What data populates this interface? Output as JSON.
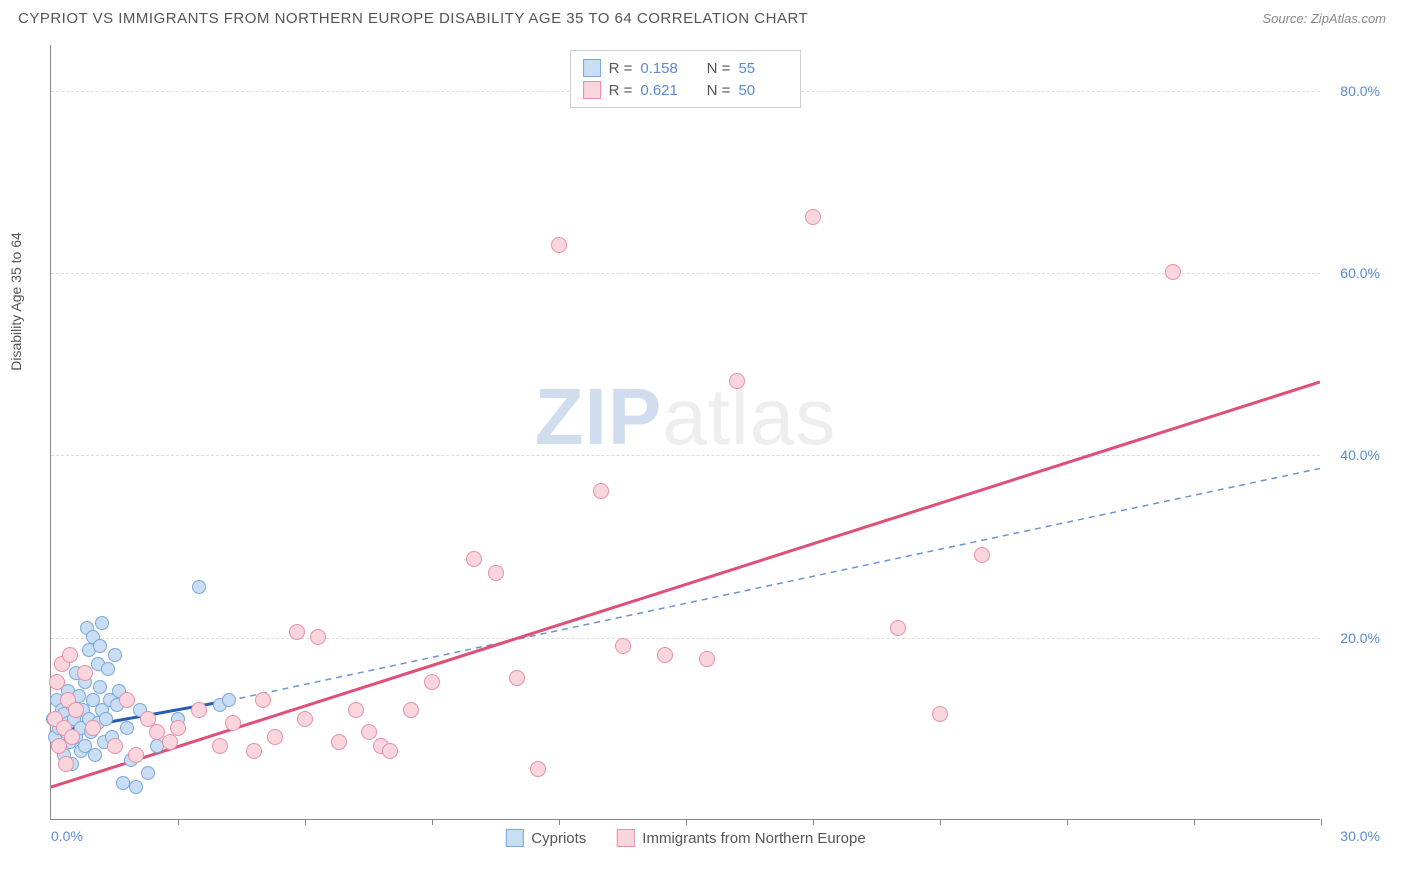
{
  "header": {
    "title": "CYPRIOT VS IMMIGRANTS FROM NORTHERN EUROPE DISABILITY AGE 35 TO 64 CORRELATION CHART",
    "source": "Source: ZipAtlas.com"
  },
  "watermark": {
    "zip": "ZIP",
    "atlas": "atlas"
  },
  "chart": {
    "type": "scatter",
    "ylabel": "Disability Age 35 to 64",
    "background_color": "#ffffff",
    "grid_color": "#dddddd",
    "axis_color": "#888888",
    "xlim": [
      0,
      30
    ],
    "ylim": [
      0,
      85
    ],
    "xtick_labels": [
      {
        "value": 0,
        "label": "0.0%"
      },
      {
        "value": 30,
        "label": "30.0%"
      }
    ],
    "xticks_minor": [
      3,
      6,
      9,
      12,
      15,
      18,
      21,
      24,
      27,
      30
    ],
    "ytick_labels": [
      {
        "value": 20,
        "label": "20.0%"
      },
      {
        "value": 40,
        "label": "40.0%"
      },
      {
        "value": 60,
        "label": "60.0%"
      },
      {
        "value": 80,
        "label": "80.0%"
      }
    ],
    "series": [
      {
        "name": "Cypriots",
        "color_fill": "#c9ddf3",
        "color_stroke": "#7aa8dd",
        "marker_size": 14,
        "R": "0.158",
        "N": "55",
        "trend_solid": {
          "x1": 0,
          "y1": 9.5,
          "x2": 4.2,
          "y2": 13.0,
          "color": "#2a5db0",
          "width": 3
        },
        "trend_dashed": {
          "x1": 4.2,
          "y1": 13.0,
          "x2": 30,
          "y2": 38.5,
          "color": "#6b94d1",
          "width": 1.5
        },
        "points": [
          [
            0.05,
            11
          ],
          [
            0.1,
            9
          ],
          [
            0.15,
            13
          ],
          [
            0.2,
            8
          ],
          [
            0.2,
            10
          ],
          [
            0.25,
            12
          ],
          [
            0.3,
            7
          ],
          [
            0.3,
            11.5
          ],
          [
            0.35,
            9.5
          ],
          [
            0.4,
            10.5
          ],
          [
            0.4,
            14
          ],
          [
            0.45,
            8.5
          ],
          [
            0.5,
            12.5
          ],
          [
            0.5,
            6
          ],
          [
            0.55,
            11
          ],
          [
            0.6,
            16
          ],
          [
            0.6,
            9
          ],
          [
            0.65,
            13.5
          ],
          [
            0.7,
            10
          ],
          [
            0.7,
            7.5
          ],
          [
            0.75,
            12
          ],
          [
            0.8,
            15
          ],
          [
            0.8,
            8
          ],
          [
            0.85,
            21
          ],
          [
            0.9,
            11
          ],
          [
            0.9,
            18.5
          ],
          [
            0.95,
            9.5
          ],
          [
            1.0,
            13
          ],
          [
            1.0,
            20
          ],
          [
            1.05,
            7
          ],
          [
            1.1,
            17
          ],
          [
            1.1,
            10.5
          ],
          [
            1.15,
            14.5
          ],
          [
            1.2,
            12
          ],
          [
            1.2,
            21.5
          ],
          [
            1.25,
            8.5
          ],
          [
            1.3,
            11
          ],
          [
            1.35,
            16.5
          ],
          [
            1.4,
            13
          ],
          [
            1.45,
            9
          ],
          [
            1.5,
            18
          ],
          [
            1.55,
            12.5
          ],
          [
            1.6,
            14
          ],
          [
            1.7,
            4
          ],
          [
            1.8,
            10
          ],
          [
            1.9,
            6.5
          ],
          [
            2.0,
            3.5
          ],
          [
            2.1,
            12
          ],
          [
            2.3,
            5
          ],
          [
            2.5,
            8
          ],
          [
            3.0,
            11
          ],
          [
            3.5,
            25.5
          ],
          [
            4.0,
            12.5
          ],
          [
            4.2,
            13
          ],
          [
            1.15,
            19
          ]
        ]
      },
      {
        "name": "Immigrants from Northern Europe",
        "color_fill": "#f9d5dd",
        "color_stroke": "#e98fa8",
        "marker_size": 16,
        "R": "0.621",
        "N": "50",
        "trend_solid": {
          "x1": 0,
          "y1": 3.5,
          "x2": 30,
          "y2": 48,
          "color": "#e04f77",
          "width": 3
        },
        "points": [
          [
            0.1,
            11
          ],
          [
            0.15,
            15
          ],
          [
            0.2,
            8
          ],
          [
            0.25,
            17
          ],
          [
            0.3,
            10
          ],
          [
            0.35,
            6
          ],
          [
            0.4,
            13
          ],
          [
            0.45,
            18
          ],
          [
            0.5,
            9
          ],
          [
            0.6,
            12
          ],
          [
            0.8,
            16
          ],
          [
            1.0,
            10
          ],
          [
            1.5,
            8
          ],
          [
            1.8,
            13
          ],
          [
            2.0,
            7
          ],
          [
            2.3,
            11
          ],
          [
            2.5,
            9.5
          ],
          [
            2.8,
            8.5
          ],
          [
            3.0,
            10
          ],
          [
            3.5,
            12
          ],
          [
            4.0,
            8
          ],
          [
            4.3,
            10.5
          ],
          [
            4.8,
            7.5
          ],
          [
            5.0,
            13
          ],
          [
            5.3,
            9
          ],
          [
            5.8,
            20.5
          ],
          [
            6.0,
            11
          ],
          [
            6.3,
            20
          ],
          [
            6.8,
            8.5
          ],
          [
            7.2,
            12
          ],
          [
            7.5,
            9.5
          ],
          [
            7.8,
            8
          ],
          [
            8.0,
            7.5
          ],
          [
            8.5,
            12
          ],
          [
            9.0,
            15
          ],
          [
            10.0,
            28.5
          ],
          [
            10.5,
            27
          ],
          [
            11.0,
            15.5
          ],
          [
            11.5,
            5.5
          ],
          [
            12.0,
            63
          ],
          [
            13.0,
            36
          ],
          [
            13.5,
            19
          ],
          [
            14.5,
            18
          ],
          [
            15.5,
            17.5
          ],
          [
            16.2,
            48
          ],
          [
            18.0,
            66
          ],
          [
            20.0,
            21
          ],
          [
            21.0,
            11.5
          ],
          [
            22.0,
            29
          ],
          [
            26.5,
            60
          ]
        ]
      }
    ]
  }
}
